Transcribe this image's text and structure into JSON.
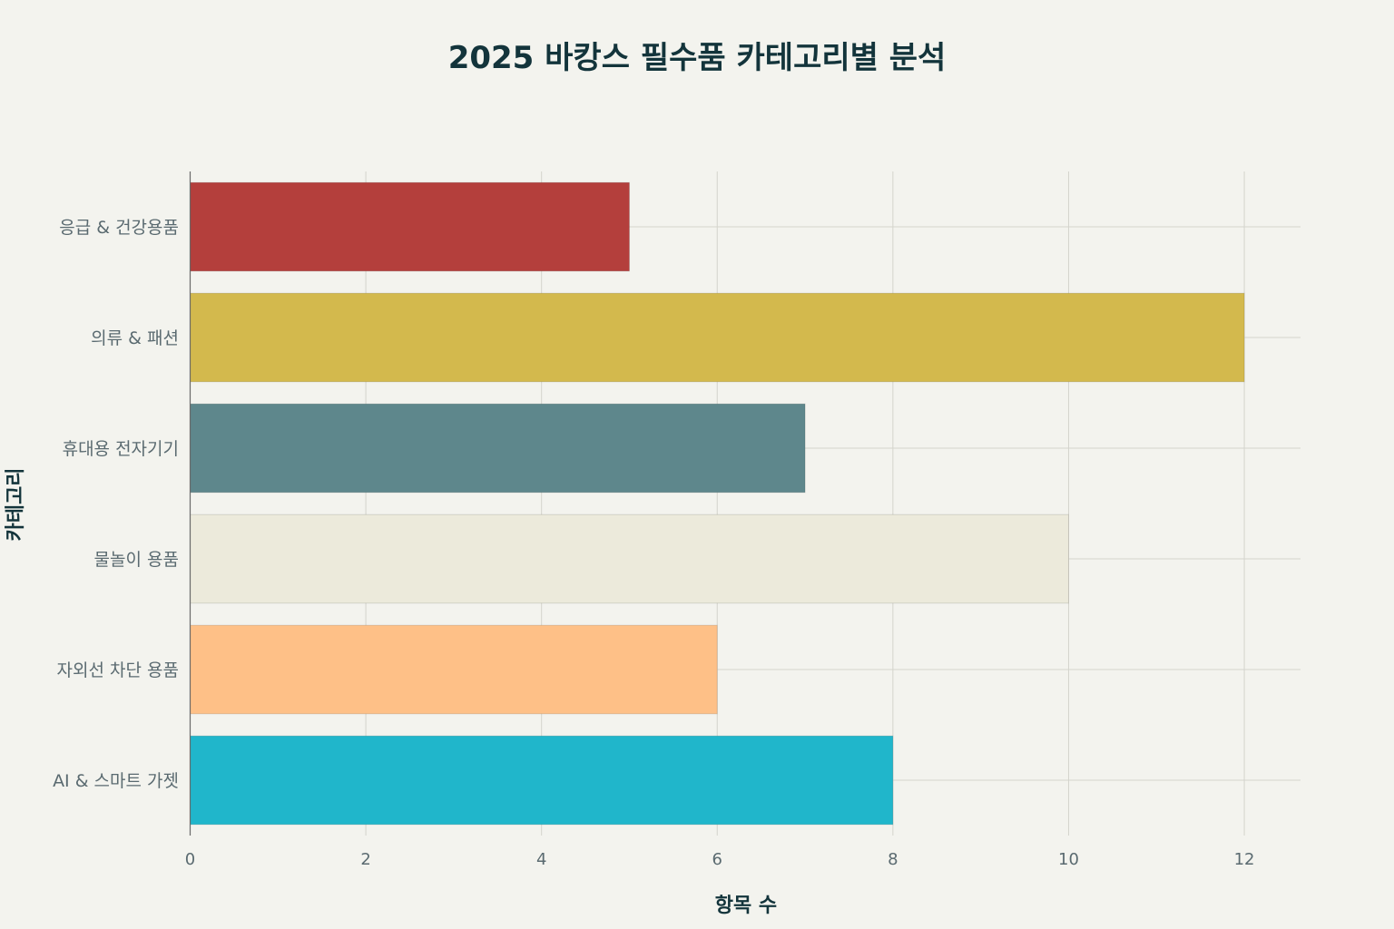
{
  "chart_data": {
    "type": "bar",
    "orientation": "horizontal",
    "title": "2025 바캉스 필수품 카테고리별 분석",
    "xlabel": "항목 수",
    "ylabel": "카테고리",
    "categories": [
      "응급 & 건강용품",
      "의류 & 패션",
      "휴대용 전자기기",
      "물놀이 용품",
      "자외선 차단 용품",
      "AI & 스마트 가젯"
    ],
    "values": [
      5,
      12,
      7,
      10,
      6,
      8
    ],
    "colors": [
      "#b43f3c",
      "#d3b94d",
      "#5e878c",
      "#eceadb",
      "#fec087",
      "#20b6cb"
    ],
    "xlim": [
      0,
      12.64
    ],
    "xticks": [
      0,
      2,
      4,
      6,
      8,
      10,
      12
    ],
    "grid": true,
    "legend": "none"
  }
}
